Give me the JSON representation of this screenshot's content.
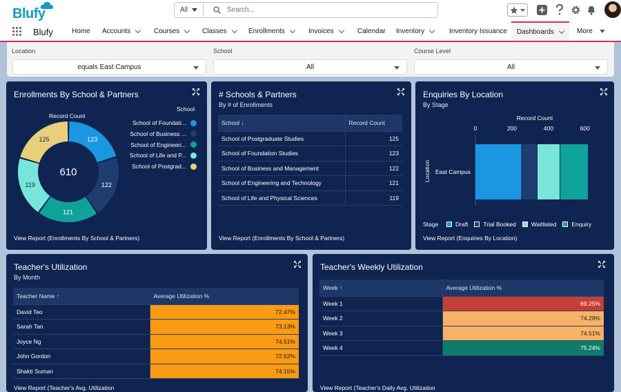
{
  "app": {
    "logo_text": "Blufy",
    "name": "Blufy"
  },
  "search": {
    "scope": "All",
    "placeholder": "Search..."
  },
  "nav": {
    "items": [
      {
        "label": "Home"
      },
      {
        "label": "Accounts"
      },
      {
        "label": "Courses"
      },
      {
        "label": "Classes"
      },
      {
        "label": "Enrollments"
      },
      {
        "label": "Invoices"
      },
      {
        "label": "Calendar"
      },
      {
        "label": "Inventory"
      },
      {
        "label": "Inventory Issuance"
      },
      {
        "label": "Dashboards"
      },
      {
        "label": "More"
      }
    ],
    "active": "Dashboards"
  },
  "filters": [
    {
      "label": "Location",
      "value": "equals East Campus"
    },
    {
      "label": "School",
      "value": "All"
    },
    {
      "label": "Course Level",
      "value": "All"
    }
  ],
  "enrollments_card": {
    "title": "Enrollments By School & Partners",
    "center_total": "610",
    "record_count_label": "Record Count",
    "legend_title": "School",
    "legend": [
      {
        "label": "School of Foundati...",
        "color": "#1b96e1"
      },
      {
        "label": "School of Business ...",
        "color": "#1f3d6e"
      },
      {
        "label": "School of Engineeri...",
        "color": "#0fa29b"
      },
      {
        "label": "School of Life and P...",
        "color": "#77e5d9"
      },
      {
        "label": "School of Postgrad...",
        "color": "#e8cf7a"
      }
    ],
    "segment_labels": [
      "123",
      "122",
      "121",
      "119",
      "125"
    ],
    "view_report": "View Report (Enrollments By School & Partners)"
  },
  "schools_card": {
    "title": "# Schools & Partners",
    "subtitle": "By # of Enrollments",
    "col_school": "School",
    "col_count": "Record Count",
    "sort_arrow": "↓",
    "rows": [
      {
        "school": "School of Postgraduate Studies",
        "count": "125"
      },
      {
        "school": "School of Foundation Studies",
        "count": "123"
      },
      {
        "school": "School of Business and Management",
        "count": "122"
      },
      {
        "school": "School of Engineering and Technology",
        "count": "121"
      },
      {
        "school": "School of Life and Physical Sciences",
        "count": "119"
      }
    ],
    "view_report": "View Report (Enrollments By School & Partners)"
  },
  "enquiries_card": {
    "title": "Enquiries By Location",
    "subtitle": "By Stage",
    "view_report": "View Report (Enquiries By Location)",
    "stage_label": "Stage"
  },
  "chart_data": [
    {
      "type": "pie",
      "title": "Enrollments By School & Partners",
      "categories": [
        "School of Foundation Studies",
        "School of Business and Management",
        "School of Engineering and Technology",
        "School of Life and Physical Sciences",
        "School of Postgraduate Studies"
      ],
      "values": [
        123,
        122,
        121,
        119,
        125
      ],
      "total": 610
    },
    {
      "type": "bar",
      "title": "Enquiries By Location",
      "subtitle": "By Stage",
      "xlabel": "Record Count",
      "ylabel": "Location",
      "categories": [
        "East Campus"
      ],
      "xlim": [
        0,
        650
      ],
      "ticks": [
        "0",
        "200",
        "400",
        "600"
      ],
      "series": [
        {
          "name": "Draft",
          "values": [
            255
          ],
          "color": "#1b96e1"
        },
        {
          "name": "Trial Booked",
          "values": [
            85
          ],
          "color": "#1f3d6e"
        },
        {
          "name": "Waitlisted",
          "values": [
            125
          ],
          "color": "#77e5d9"
        },
        {
          "name": "Enquiry",
          "values": [
            155
          ],
          "color": "#0fa29b"
        }
      ]
    }
  ],
  "teacher_card": {
    "title": "Teacher's Utilization",
    "subtitle": "By Month",
    "col_name": "Teacher Name",
    "col_util": "Average Utilization %",
    "sort_arrow": "↑",
    "rows": [
      {
        "name": "David Teo",
        "util": "72.47%",
        "color": "#fb9a13"
      },
      {
        "name": "Sarah Tan",
        "util": "73.13%",
        "color": "#fb9a13"
      },
      {
        "name": "Joyce Ng",
        "util": "74.51%",
        "color": "#fb9a13"
      },
      {
        "name": "John Gordon",
        "util": "72.52%",
        "color": "#fb9a13"
      },
      {
        "name": "Shakti Suman",
        "util": "74.15%",
        "color": "#fb9a13"
      }
    ],
    "view_report": "View Report (Teacher's Avg. Utilization"
  },
  "weekly_card": {
    "title": "Teacher's Weekly Utilization",
    "col_week": "Week",
    "col_util": "Average Utilization %",
    "sort_arrow": "↑",
    "rows": [
      {
        "week": "Week 1",
        "util": "69.25%",
        "color": "#c33f38"
      },
      {
        "week": "Week 2",
        "util": "74.29%",
        "color": "#f8b268"
      },
      {
        "week": "Week 3",
        "util": "74.51%",
        "color": "#f8b268"
      },
      {
        "week": "Week 4",
        "util": "75.24%",
        "color": "#0e7c6c"
      }
    ],
    "view_report": "View Report (Teacher's Daily Avg. Utilization"
  }
}
